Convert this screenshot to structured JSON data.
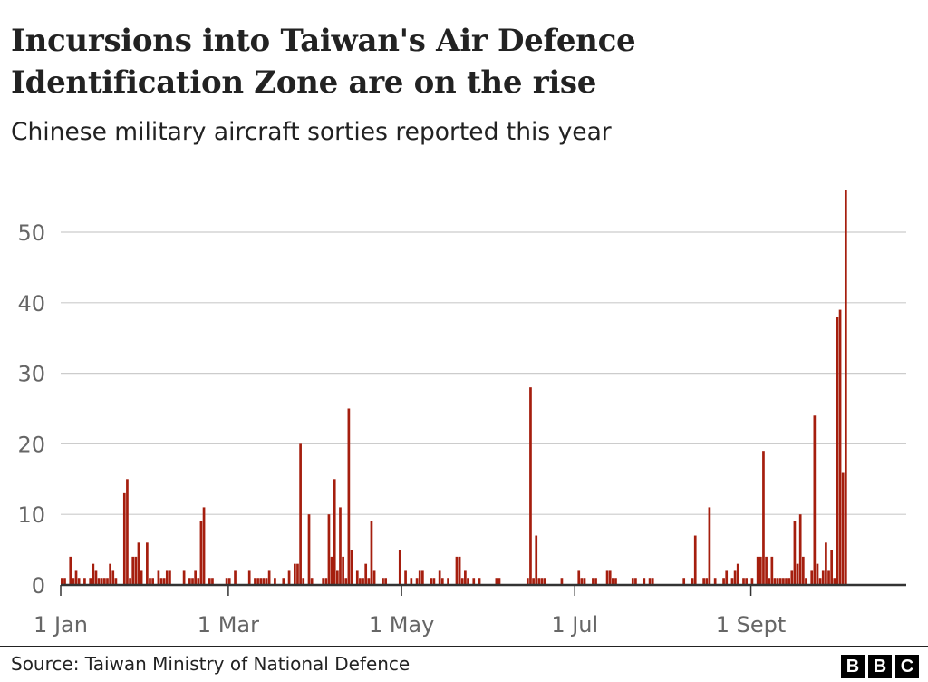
{
  "header": {
    "title_line1": "Incursions into Taiwan's Air Defence",
    "title_line2": "Identification Zone are on the rise",
    "subtitle": "Chinese military aircraft sorties reported this year"
  },
  "footer": {
    "source": "Source: Taiwan Ministry of National Defence",
    "logo_letters": [
      "B",
      "B",
      "C"
    ]
  },
  "chart_data": {
    "type": "bar",
    "title": "Incursions into Taiwan's Air Defence Identification Zone are on the rise",
    "subtitle": "Chinese military aircraft sorties reported this year",
    "xlabel": "",
    "ylabel": "",
    "ylim": [
      0,
      56
    ],
    "yticks": [
      0,
      10,
      20,
      30,
      40,
      50
    ],
    "xticks": [
      "1 Jan",
      "1 Mar",
      "1 May",
      "1 Jul",
      "1 Sept"
    ],
    "grid": true,
    "bar_color": "#a51e0e",
    "data": [
      [
        "1 Jan",
        1
      ],
      [
        "2 Jan",
        1
      ],
      [
        "4 Jan",
        4
      ],
      [
        "5 Jan",
        1
      ],
      [
        "6 Jan",
        2
      ],
      [
        "7 Jan",
        1
      ],
      [
        "9 Jan",
        1
      ],
      [
        "11 Jan",
        1
      ],
      [
        "12 Jan",
        3
      ],
      [
        "13 Jan",
        2
      ],
      [
        "14 Jan",
        1
      ],
      [
        "15 Jan",
        1
      ],
      [
        "16 Jan",
        1
      ],
      [
        "17 Jan",
        1
      ],
      [
        "18 Jan",
        3
      ],
      [
        "19 Jan",
        2
      ],
      [
        "20 Jan",
        1
      ],
      [
        "23 Jan",
        13
      ],
      [
        "24 Jan",
        15
      ],
      [
        "25 Jan",
        1
      ],
      [
        "26 Jan",
        4
      ],
      [
        "27 Jan",
        4
      ],
      [
        "28 Jan",
        6
      ],
      [
        "29 Jan",
        2
      ],
      [
        "31 Jan",
        6
      ],
      [
        "1 Feb",
        1
      ],
      [
        "2 Feb",
        1
      ],
      [
        "4 Feb",
        2
      ],
      [
        "5 Feb",
        1
      ],
      [
        "6 Feb",
        1
      ],
      [
        "7 Feb",
        2
      ],
      [
        "8 Feb",
        2
      ],
      [
        "13 Feb",
        2
      ],
      [
        "15 Feb",
        1
      ],
      [
        "16 Feb",
        1
      ],
      [
        "17 Feb",
        2
      ],
      [
        "18 Feb",
        1
      ],
      [
        "19 Feb",
        9
      ],
      [
        "20 Feb",
        11
      ],
      [
        "22 Feb",
        1
      ],
      [
        "23 Feb",
        1
      ],
      [
        "28 Feb",
        1
      ],
      [
        "1 Mar",
        1
      ],
      [
        "3 Mar",
        2
      ],
      [
        "8 Mar",
        2
      ],
      [
        "10 Mar",
        1
      ],
      [
        "11 Mar",
        1
      ],
      [
        "12 Mar",
        1
      ],
      [
        "13 Mar",
        1
      ],
      [
        "14 Mar",
        1
      ],
      [
        "15 Mar",
        2
      ],
      [
        "17 Mar",
        1
      ],
      [
        "20 Mar",
        1
      ],
      [
        "22 Mar",
        2
      ],
      [
        "24 Mar",
        3
      ],
      [
        "25 Mar",
        3
      ],
      [
        "26 Mar",
        20
      ],
      [
        "27 Mar",
        1
      ],
      [
        "29 Mar",
        10
      ],
      [
        "30 Mar",
        1
      ],
      [
        "3 Apr",
        1
      ],
      [
        "4 Apr",
        1
      ],
      [
        "5 Apr",
        10
      ],
      [
        "6 Apr",
        4
      ],
      [
        "7 Apr",
        15
      ],
      [
        "8 Apr",
        2
      ],
      [
        "9 Apr",
        11
      ],
      [
        "10 Apr",
        4
      ],
      [
        "11 Apr",
        1
      ],
      [
        "12 Apr",
        25
      ],
      [
        "13 Apr",
        5
      ],
      [
        "15 Apr",
        2
      ],
      [
        "16 Apr",
        1
      ],
      [
        "17 Apr",
        1
      ],
      [
        "18 Apr",
        3
      ],
      [
        "19 Apr",
        1
      ],
      [
        "20 Apr",
        9
      ],
      [
        "21 Apr",
        2
      ],
      [
        "24 Apr",
        1
      ],
      [
        "25 Apr",
        1
      ],
      [
        "30 Apr",
        5
      ],
      [
        "2 May",
        2
      ],
      [
        "4 May",
        1
      ],
      [
        "6 May",
        1
      ],
      [
        "7 May",
        2
      ],
      [
        "8 May",
        2
      ],
      [
        "11 May",
        1
      ],
      [
        "12 May",
        1
      ],
      [
        "14 May",
        2
      ],
      [
        "15 May",
        1
      ],
      [
        "17 May",
        1
      ],
      [
        "20 May",
        4
      ],
      [
        "21 May",
        4
      ],
      [
        "22 May",
        1
      ],
      [
        "23 May",
        2
      ],
      [
        "24 May",
        1
      ],
      [
        "26 May",
        1
      ],
      [
        "28 May",
        1
      ],
      [
        "3 Jun",
        1
      ],
      [
        "4 Jun",
        1
      ],
      [
        "14 Jun",
        1
      ],
      [
        "15 Jun",
        28
      ],
      [
        "16 Jun",
        1
      ],
      [
        "17 Jun",
        7
      ],
      [
        "18 Jun",
        1
      ],
      [
        "19 Jun",
        1
      ],
      [
        "20 Jun",
        1
      ],
      [
        "26 Jun",
        1
      ],
      [
        "2 Jul",
        2
      ],
      [
        "3 Jul",
        1
      ],
      [
        "4 Jul",
        1
      ],
      [
        "7 Jul",
        1
      ],
      [
        "8 Jul",
        1
      ],
      [
        "12 Jul",
        2
      ],
      [
        "13 Jul",
        2
      ],
      [
        "14 Jul",
        1
      ],
      [
        "15 Jul",
        1
      ],
      [
        "21 Jul",
        1
      ],
      [
        "22 Jul",
        1
      ],
      [
        "25 Jul",
        1
      ],
      [
        "27 Jul",
        1
      ],
      [
        "28 Jul",
        1
      ],
      [
        "8 Aug",
        1
      ],
      [
        "11 Aug",
        1
      ],
      [
        "12 Aug",
        7
      ],
      [
        "15 Aug",
        1
      ],
      [
        "16 Aug",
        1
      ],
      [
        "17 Aug",
        11
      ],
      [
        "19 Aug",
        1
      ],
      [
        "22 Aug",
        1
      ],
      [
        "23 Aug",
        2
      ],
      [
        "25 Aug",
        1
      ],
      [
        "26 Aug",
        2
      ],
      [
        "27 Aug",
        3
      ],
      [
        "29 Aug",
        1
      ],
      [
        "30 Aug",
        1
      ],
      [
        "1 Sep",
        1
      ],
      [
        "3 Sep",
        4
      ],
      [
        "4 Sep",
        4
      ],
      [
        "5 Sep",
        19
      ],
      [
        "6 Sep",
        4
      ],
      [
        "7 Sep",
        1
      ],
      [
        "8 Sep",
        4
      ],
      [
        "9 Sep",
        1
      ],
      [
        "10 Sep",
        1
      ],
      [
        "11 Sep",
        1
      ],
      [
        "12 Sep",
        1
      ],
      [
        "13 Sep",
        1
      ],
      [
        "14 Sep",
        1
      ],
      [
        "15 Sep",
        2
      ],
      [
        "16 Sep",
        9
      ],
      [
        "17 Sep",
        3
      ],
      [
        "18 Sep",
        10
      ],
      [
        "19 Sep",
        4
      ],
      [
        "20 Sep",
        1
      ],
      [
        "22 Sep",
        2
      ],
      [
        "23 Sep",
        24
      ],
      [
        "24 Sep",
        3
      ],
      [
        "25 Sep",
        1
      ],
      [
        "26 Sep",
        2
      ],
      [
        "27 Sep",
        6
      ],
      [
        "28 Sep",
        2
      ],
      [
        "29 Sep",
        5
      ],
      [
        "30 Sep",
        1
      ],
      [
        "1 Oct",
        38
      ],
      [
        "2 Oct",
        39
      ],
      [
        "3 Oct",
        16
      ],
      [
        "4 Oct",
        56
      ]
    ]
  }
}
